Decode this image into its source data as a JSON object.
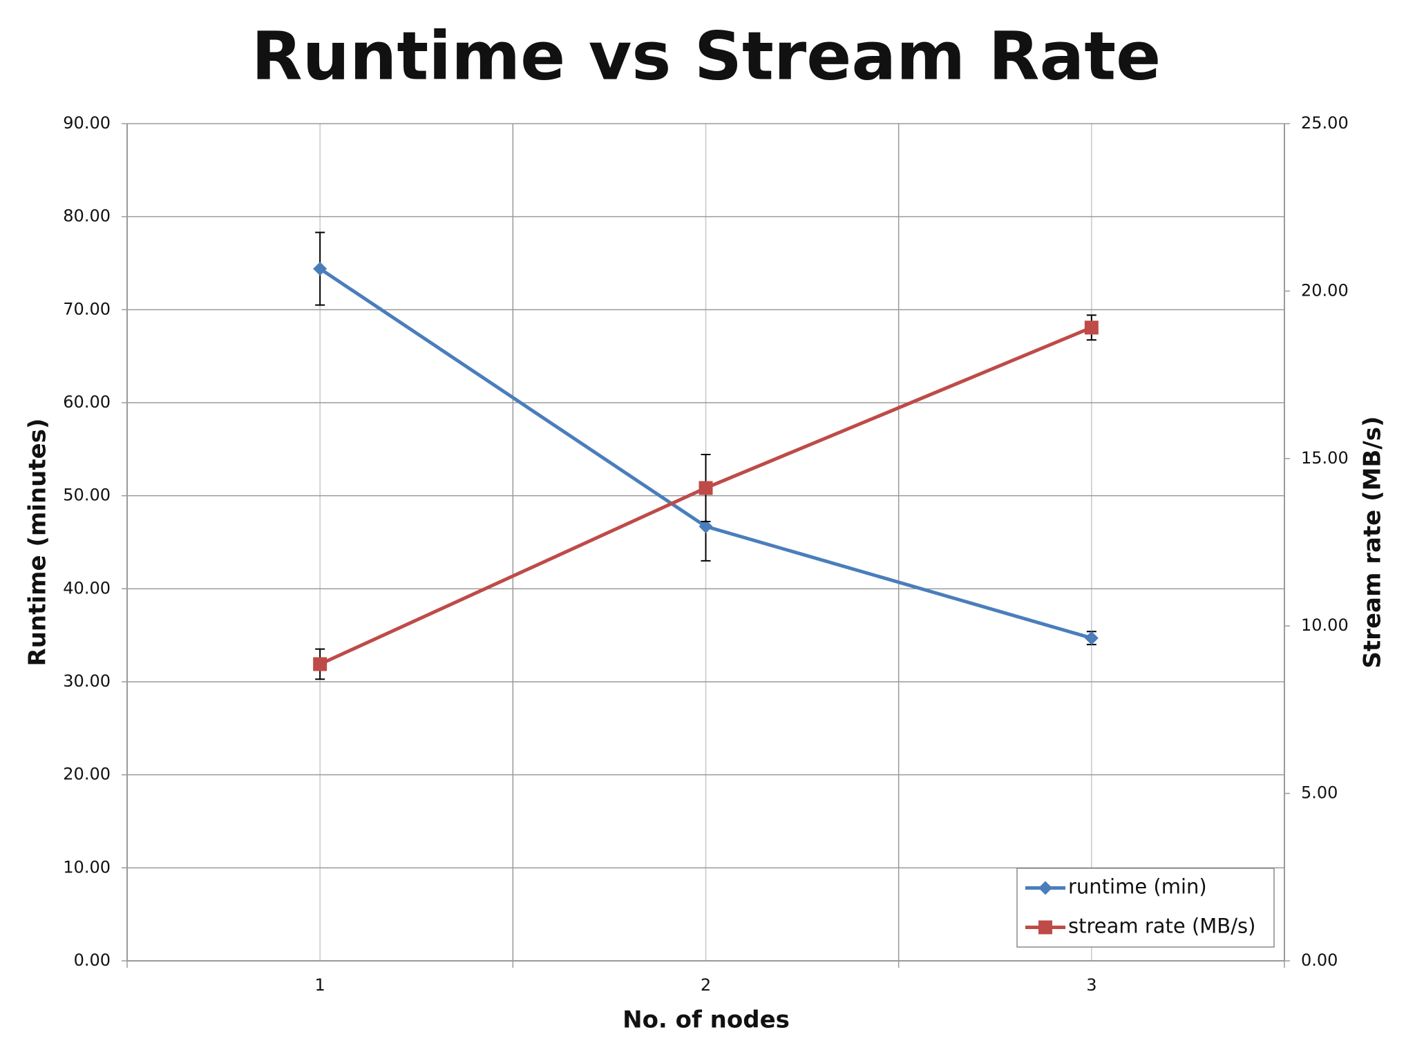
{
  "chart_data": {
    "type": "line",
    "title": "Runtime vs Stream Rate",
    "x_label": "No. of nodes",
    "y_label": "Runtime (minutes)",
    "y2_label": "Stream rate (MB/s)",
    "categories": [
      "1",
      "2",
      "3"
    ],
    "series": [
      {
        "name": "runtime (min)",
        "color": "#4a7ebb",
        "marker": "diamond",
        "values": [
          74.4,
          46.7,
          34.7
        ],
        "errors": [
          3.9,
          3.7,
          0.7
        ]
      },
      {
        "name": "stream rate (MB/s)",
        "color": "#be4b48",
        "marker": "square",
        "axis": "y2",
        "values": [
          8.86,
          14.12,
          18.91
        ],
        "errors": [
          0.45,
          1.0,
          0.37
        ]
      }
    ],
    "ylim": [
      0,
      90
    ],
    "yticks": [
      {
        "value": 0,
        "label": "0.00"
      },
      {
        "value": 10,
        "label": "10.00"
      },
      {
        "value": 20,
        "label": "20.00"
      },
      {
        "value": 30,
        "label": "30.00"
      },
      {
        "value": 40,
        "label": "40.00"
      },
      {
        "value": 50,
        "label": "50.00"
      },
      {
        "value": 60,
        "label": "60.00"
      },
      {
        "value": 70,
        "label": "70.00"
      },
      {
        "value": 80,
        "label": "80.00"
      },
      {
        "value": 90,
        "label": "90.00"
      }
    ],
    "y2lim": [
      0,
      25
    ],
    "y2ticks": [
      {
        "value": 0,
        "label": "0.00"
      },
      {
        "value": 5,
        "label": "5.00"
      },
      {
        "value": 10,
        "label": "10.00"
      },
      {
        "value": 15,
        "label": "15.00"
      },
      {
        "value": 20,
        "label": "20.00"
      },
      {
        "value": 25,
        "label": "25.00"
      }
    ],
    "grid": true,
    "legend": "lower right"
  }
}
